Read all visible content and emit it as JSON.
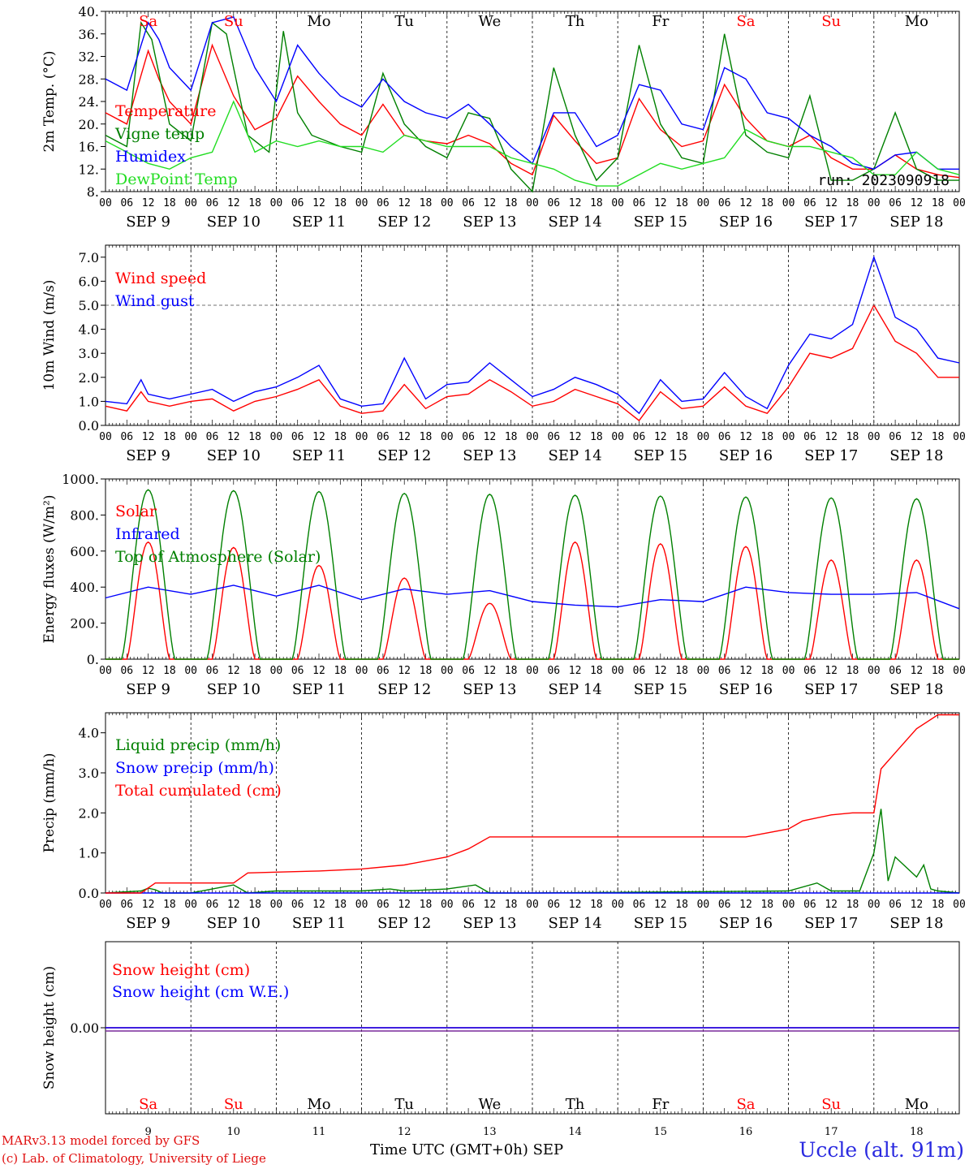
{
  "run_label": "run: 2023090918",
  "footer": {
    "line1": "MARv3.13 model forced by GFS",
    "line2": "(c) Lab. of Climatology, University of Liege",
    "time_axis_label": "Time UTC (GMT+0h) SEP",
    "station": "Uccle (alt. 91m)"
  },
  "days": {
    "names": [
      "Sa",
      "Su",
      "Mo",
      "Tu",
      "We",
      "Th",
      "Fr",
      "Sa",
      "Su",
      "Mo"
    ],
    "weekend": [
      true,
      true,
      false,
      false,
      false,
      false,
      false,
      true,
      true,
      false
    ],
    "date_labels": [
      "SEP  9",
      "SEP 10",
      "SEP 11",
      "SEP 12",
      "SEP 13",
      "SEP 14",
      "SEP 15",
      "SEP 16",
      "SEP 17",
      "SEP 18"
    ],
    "day_numbers": [
      "9",
      "10",
      "11",
      "12",
      "13",
      "14",
      "15",
      "16",
      "17",
      "18"
    ],
    "hour_ticks": [
      "00",
      "06",
      "12",
      "18"
    ],
    "final_tick": "00"
  },
  "colors": {
    "red": "#ff0000",
    "green": "#008000",
    "blue": "#0000ff",
    "lightgreen": "#22dd22",
    "purple": "#7a2a9a"
  },
  "chart_data": [
    {
      "type": "line",
      "ylabel": "2m Temp. (°C)",
      "ylim": [
        8,
        40
      ],
      "yticks": [
        "8.",
        "12.",
        "16.",
        "20.",
        "24.",
        "28.",
        "32.",
        "36.",
        "40."
      ],
      "x_unit": "hours since 2023-09-09 00 UTC",
      "series": [
        {
          "name": "Temperature",
          "color": "red",
          "x": [
            0,
            6,
            12,
            15,
            18,
            24,
            30,
            36,
            42,
            48,
            54,
            60,
            66,
            72,
            78,
            84,
            90,
            96,
            102,
            108,
            114,
            120,
            126,
            132,
            138,
            144,
            150,
            156,
            162,
            168,
            174,
            180,
            186,
            192,
            198,
            204,
            210,
            216,
            222,
            228,
            234,
            240
          ],
          "y": [
            22,
            20,
            33,
            28,
            24,
            20,
            34,
            25,
            19,
            21,
            28.5,
            24,
            20,
            18,
            23.5,
            18,
            17,
            16.5,
            18,
            16.5,
            13,
            11,
            21.5,
            17,
            13,
            14,
            24.5,
            19,
            16,
            17,
            27,
            21,
            17,
            16,
            18,
            14,
            12,
            12,
            14.5,
            12,
            11,
            10.5
          ]
        },
        {
          "name": "Vigne temp",
          "color": "green",
          "x": [
            0,
            6,
            10,
            13,
            18,
            24,
            30,
            34,
            40,
            46,
            50,
            54,
            58,
            66,
            72,
            78,
            84,
            90,
            96,
            102,
            108,
            114,
            120,
            126,
            132,
            138,
            144,
            150,
            156,
            162,
            168,
            174,
            180,
            186,
            192,
            198,
            204,
            210,
            216,
            222,
            228,
            234,
            240
          ],
          "y": [
            18,
            16,
            38,
            35,
            20,
            17,
            38,
            36,
            18,
            15,
            36.5,
            22,
            18,
            16,
            15,
            29,
            20,
            16,
            14,
            22,
            21,
            12,
            8,
            30,
            18,
            10,
            14,
            34,
            20,
            14,
            13,
            36,
            18,
            15,
            14,
            25,
            10,
            10,
            12,
            22,
            12,
            10,
            10
          ]
        },
        {
          "name": "Humidex",
          "color": "blue",
          "x": [
            0,
            6,
            12,
            15,
            18,
            24,
            30,
            36,
            42,
            48,
            54,
            60,
            66,
            72,
            78,
            84,
            90,
            96,
            102,
            108,
            114,
            120,
            126,
            132,
            138,
            144,
            150,
            156,
            162,
            168,
            174,
            180,
            186,
            192,
            198,
            204,
            210,
            216,
            222,
            228,
            234,
            240
          ],
          "y": [
            28,
            26,
            38,
            35,
            30,
            26,
            38,
            39,
            30,
            24,
            34,
            29,
            25,
            23,
            28,
            24,
            22,
            21,
            23.5,
            20,
            16,
            13,
            22,
            22,
            16,
            18,
            27,
            26,
            20,
            19,
            30,
            28,
            22,
            21,
            18,
            16,
            13,
            12,
            14.5,
            15,
            12,
            12
          ]
        },
        {
          "name": "DewPoint Temp",
          "color": "lightgreen",
          "x": [
            0,
            6,
            12,
            18,
            24,
            30,
            36,
            42,
            48,
            54,
            60,
            66,
            72,
            78,
            84,
            90,
            96,
            102,
            108,
            114,
            120,
            126,
            132,
            138,
            144,
            150,
            156,
            162,
            168,
            174,
            180,
            186,
            192,
            198,
            204,
            210,
            216,
            222,
            228,
            234,
            240
          ],
          "y": [
            17,
            15,
            13,
            12,
            14,
            15,
            24,
            15,
            17,
            16,
            17,
            16,
            16,
            15,
            18,
            17,
            16,
            16,
            16,
            14,
            13,
            12,
            10,
            9,
            9,
            11,
            13,
            12,
            13,
            14,
            19,
            17,
            16,
            16,
            15,
            14,
            11,
            11,
            15,
            12,
            11
          ]
        }
      ]
    },
    {
      "type": "line",
      "ylabel": "10m Wind (m/s)",
      "ylim": [
        0,
        7.5
      ],
      "yticks": [
        "0.0",
        "1.0",
        "2.0",
        "3.0",
        "4.0",
        "5.0",
        "6.0",
        "7.0"
      ],
      "reference_line": 5.0,
      "x_unit": "hours since 2023-09-09 00 UTC",
      "series": [
        {
          "name": "Wind speed",
          "color": "red",
          "x": [
            0,
            6,
            10,
            12,
            18,
            24,
            30,
            36,
            42,
            48,
            54,
            60,
            66,
            72,
            78,
            84,
            90,
            96,
            102,
            108,
            114,
            120,
            126,
            132,
            138,
            144,
            150,
            156,
            162,
            168,
            174,
            180,
            186,
            192,
            198,
            204,
            210,
            216,
            222,
            228,
            234,
            240
          ],
          "y": [
            0.8,
            0.6,
            1.4,
            1.0,
            0.8,
            1.0,
            1.1,
            0.6,
            1.0,
            1.2,
            1.5,
            1.9,
            0.8,
            0.5,
            0.6,
            1.7,
            0.7,
            1.2,
            1.3,
            1.9,
            1.4,
            0.8,
            1.0,
            1.5,
            1.2,
            0.9,
            0.2,
            1.4,
            0.7,
            0.8,
            1.6,
            0.8,
            0.5,
            1.6,
            3.0,
            2.8,
            3.2,
            5.0,
            3.5,
            3.0,
            2.0,
            2.0
          ]
        },
        {
          "name": "Wind gust",
          "color": "blue",
          "x": [
            0,
            6,
            10,
            12,
            18,
            24,
            30,
            36,
            42,
            48,
            54,
            60,
            66,
            72,
            78,
            84,
            90,
            96,
            102,
            108,
            114,
            120,
            126,
            132,
            138,
            144,
            150,
            156,
            162,
            168,
            174,
            180,
            186,
            192,
            198,
            204,
            210,
            216,
            222,
            228,
            234,
            240
          ],
          "y": [
            1.0,
            0.9,
            1.9,
            1.3,
            1.1,
            1.3,
            1.5,
            1.0,
            1.4,
            1.6,
            2.0,
            2.5,
            1.1,
            0.8,
            0.9,
            2.8,
            1.1,
            1.7,
            1.8,
            2.6,
            1.9,
            1.2,
            1.5,
            2.0,
            1.7,
            1.3,
            0.5,
            1.9,
            1.0,
            1.1,
            2.2,
            1.2,
            0.7,
            2.5,
            3.8,
            3.6,
            4.2,
            7.0,
            4.5,
            4.0,
            2.8,
            2.6
          ]
        }
      ]
    },
    {
      "type": "line",
      "ylabel": "Energy fluxes (W/m²)",
      "ylim": [
        0,
        1000
      ],
      "yticks": [
        "0.",
        "200.",
        "400.",
        "600.",
        "800.",
        "1000."
      ],
      "x_unit": "hours since 2023-09-09 00 UTC",
      "series": [
        {
          "name": "Solar",
          "color": "red",
          "peaks": [
            650,
            620,
            520,
            450,
            310,
            650,
            640,
            625,
            550,
            550
          ],
          "peak_hour": 12
        },
        {
          "name": "Infrared",
          "color": "blue",
          "x": [
            0,
            12,
            24,
            36,
            48,
            60,
            72,
            84,
            96,
            108,
            120,
            132,
            144,
            156,
            168,
            180,
            192,
            204,
            216,
            228,
            240
          ],
          "y": [
            340,
            400,
            360,
            410,
            350,
            410,
            330,
            390,
            360,
            380,
            320,
            300,
            290,
            330,
            320,
            400,
            370,
            360,
            360,
            370,
            280
          ]
        },
        {
          "name": "Top of Atmosphere (Solar)",
          "color": "green",
          "peaks": [
            940,
            935,
            930,
            920,
            915,
            910,
            905,
            900,
            895,
            890
          ],
          "peak_hour": 12
        }
      ]
    },
    {
      "type": "line",
      "ylabel": "Precip (mm/h)",
      "ylim": [
        0,
        4.5
      ],
      "yticks": [
        "0.0",
        "1.0",
        "2.0",
        "3.0",
        "4.0"
      ],
      "x_unit": "hours since 2023-09-09 00 UTC",
      "series": [
        {
          "name": "Liquid precip (mm/h)",
          "color": "green",
          "x": [
            0,
            10,
            12,
            14,
            16,
            24,
            30,
            36,
            40,
            48,
            72,
            80,
            84,
            96,
            100,
            104,
            108,
            120,
            192,
            200,
            204,
            212,
            216,
            218,
            220,
            222,
            228,
            230,
            232,
            234,
            240
          ],
          "y": [
            0,
            0.05,
            0.12,
            0.08,
            0,
            0,
            0.1,
            0.2,
            0,
            0.05,
            0.05,
            0.1,
            0.05,
            0.1,
            0.15,
            0.2,
            0,
            0,
            0.05,
            0.25,
            0.05,
            0.05,
            1.0,
            2.1,
            0.3,
            0.9,
            0.4,
            0.7,
            0.1,
            0.05,
            0
          ]
        },
        {
          "name": "Snow precip (mm/h)",
          "color": "blue",
          "x": [
            0,
            240
          ],
          "y": [
            0,
            0
          ]
        },
        {
          "name": "Total cumulated (cm)",
          "color": "red",
          "x": [
            0,
            10,
            14,
            24,
            36,
            40,
            48,
            60,
            72,
            84,
            96,
            102,
            108,
            120,
            180,
            192,
            196,
            204,
            210,
            216,
            218,
            222,
            228,
            234,
            240
          ],
          "y": [
            0,
            0,
            0.25,
            0.25,
            0.25,
            0.5,
            0.52,
            0.55,
            0.6,
            0.7,
            0.9,
            1.1,
            1.4,
            1.4,
            1.4,
            1.6,
            1.8,
            1.95,
            2.0,
            2.0,
            3.1,
            3.5,
            4.1,
            4.45,
            4.45
          ]
        }
      ]
    },
    {
      "type": "line",
      "ylabel": "Snow height (cm)",
      "ylim": [
        -1,
        1
      ],
      "yticks": [
        "0.00"
      ],
      "x_unit": "hours since 2023-09-09 00 UTC",
      "series": [
        {
          "name": "Snow height (cm)",
          "color": "red",
          "x": [
            0,
            240
          ],
          "y": [
            0,
            0
          ]
        },
        {
          "name": "Snow height (cm W.E.)",
          "color": "blue",
          "x": [
            0,
            240
          ],
          "y": [
            0,
            0
          ]
        }
      ]
    }
  ]
}
